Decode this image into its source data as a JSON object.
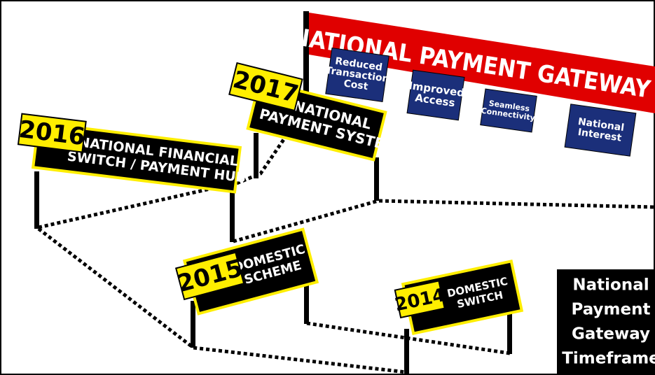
{
  "gateway": {
    "title": "NATIONAL PAYMENT GATEWAY",
    "badges": [
      [
        "Reduced",
        "Transaction",
        "Cost"
      ],
      [
        "Improved",
        "Access"
      ],
      [
        "Seamless",
        "Connectivity"
      ],
      [
        "National",
        "Interest"
      ]
    ]
  },
  "signs": [
    {
      "year": "2016",
      "label": [
        "NATIONAL FINANCIAL",
        "SWITCH / PAYMENT HUB"
      ]
    },
    {
      "year": "2017",
      "label": [
        "NATIONAL",
        "PAYMENT SYSTEM"
      ]
    },
    {
      "year": "2015",
      "label": [
        "DOMESTIC",
        "SCHEME"
      ]
    },
    {
      "year": "2014",
      "label": [
        "DOMESTIC",
        "SWITCH"
      ]
    }
  ],
  "side_box": [
    "National",
    "Payment",
    "Gateway",
    "Timeframe"
  ]
}
